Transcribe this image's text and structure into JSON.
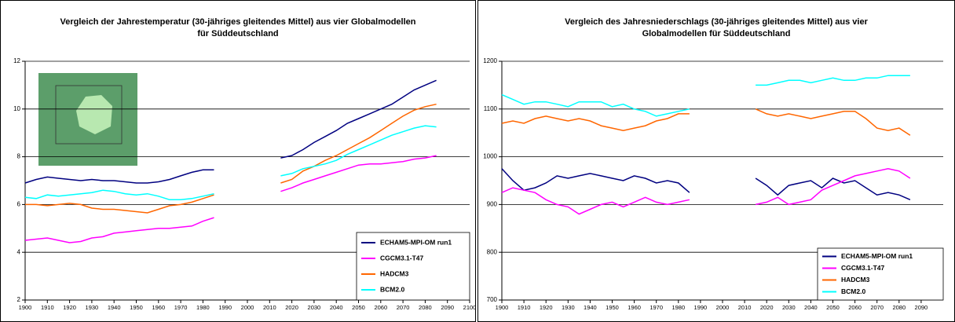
{
  "chart_data": [
    {
      "type": "line",
      "title": "Vergleich der Jahrestemperatur (30-jähriges gleitendes Mittel) aus vier Globalmodellen für Süddeutschland",
      "x": [
        1900,
        1905,
        1910,
        1915,
        1920,
        1925,
        1930,
        1935,
        1940,
        1945,
        1950,
        1955,
        1960,
        1965,
        1970,
        1975,
        1980,
        1985,
        2000,
        2015,
        2020,
        2025,
        2030,
        2035,
        2040,
        2045,
        2050,
        2055,
        2060,
        2065,
        2070,
        2075,
        2080,
        2085
      ],
      "xlim": [
        1900,
        2100
      ],
      "xticks": [
        1900,
        1910,
        1920,
        1930,
        1940,
        1950,
        1960,
        1970,
        1980,
        1990,
        2000,
        2010,
        2020,
        2030,
        2040,
        2050,
        2060,
        2070,
        2080,
        2090,
        2100
      ],
      "ylim": [
        2,
        12
      ],
      "yticks": [
        2,
        4,
        6,
        8,
        10,
        12
      ],
      "grid": true,
      "legend": "lower right",
      "series": [
        {
          "name": "ECHAM5-MPI-OM run1",
          "color": "#000080",
          "values": [
            6.9,
            7.05,
            7.15,
            7.1,
            7.05,
            7.0,
            7.05,
            7.0,
            7.0,
            6.95,
            6.9,
            6.9,
            6.95,
            7.05,
            7.2,
            7.35,
            7.45,
            7.45,
            null,
            7.95,
            8.05,
            8.3,
            8.6,
            8.85,
            9.1,
            9.4,
            9.6,
            9.8,
            10.0,
            10.2,
            10.5,
            10.8,
            11.0,
            11.2
          ]
        },
        {
          "name": "CGCM3.1-T47",
          "color": "#ff00ff",
          "values": [
            4.5,
            4.55,
            4.6,
            4.5,
            4.4,
            4.45,
            4.6,
            4.65,
            4.8,
            4.85,
            4.9,
            4.95,
            5.0,
            5.0,
            5.05,
            5.1,
            5.3,
            5.45,
            null,
            6.55,
            6.7,
            6.9,
            7.05,
            7.2,
            7.35,
            7.5,
            7.65,
            7.7,
            7.7,
            7.75,
            7.8,
            7.9,
            7.95,
            8.05
          ]
        },
        {
          "name": "HADCM3",
          "color": "#ff6600",
          "values": [
            6.0,
            6.0,
            5.95,
            6.0,
            6.05,
            6.0,
            5.85,
            5.8,
            5.8,
            5.75,
            5.7,
            5.65,
            5.8,
            5.95,
            6.0,
            6.1,
            6.25,
            6.4,
            null,
            6.9,
            7.05,
            7.4,
            7.6,
            7.85,
            8.05,
            8.3,
            8.55,
            8.8,
            9.1,
            9.4,
            9.7,
            9.95,
            10.1,
            10.2
          ]
        },
        {
          "name": "BCM2.0",
          "color": "#00ffff",
          "values": [
            6.3,
            6.25,
            6.4,
            6.35,
            6.4,
            6.45,
            6.5,
            6.6,
            6.55,
            6.45,
            6.4,
            6.45,
            6.35,
            6.2,
            6.2,
            6.25,
            6.35,
            6.45,
            null,
            7.2,
            7.3,
            7.5,
            7.6,
            7.7,
            7.85,
            8.1,
            8.3,
            8.5,
            8.7,
            8.9,
            9.05,
            9.2,
            9.3,
            9.25
          ]
        }
      ]
    },
    {
      "type": "line",
      "title": "Vergleich des Jahresniederschlags (30-jähriges gleitendes Mittel) aus vier Globalmodellen für Süddeutschland",
      "x": [
        1900,
        1905,
        1910,
        1915,
        1920,
        1925,
        1930,
        1935,
        1940,
        1945,
        1950,
        1955,
        1960,
        1965,
        1970,
        1975,
        1980,
        1985,
        2000,
        2015,
        2020,
        2025,
        2030,
        2035,
        2040,
        2045,
        2050,
        2055,
        2060,
        2065,
        2070,
        2075,
        2080,
        2085
      ],
      "xlim": [
        1900,
        2100
      ],
      "xticks": [
        1900,
        1910,
        1920,
        1930,
        1940,
        1950,
        1960,
        1970,
        1980,
        1990,
        2000,
        2010,
        2020,
        2030,
        2040,
        2050,
        2060,
        2070,
        2080,
        2090
      ],
      "ylim": [
        700,
        1200
      ],
      "yticks": [
        700,
        800,
        900,
        1000,
        1100,
        1200
      ],
      "grid": true,
      "legend": "lower right",
      "series": [
        {
          "name": "ECHAM5-MPI-OM run1",
          "color": "#000080",
          "values": [
            975,
            950,
            930,
            935,
            945,
            960,
            955,
            960,
            965,
            960,
            955,
            950,
            960,
            955,
            945,
            950,
            945,
            925,
            null,
            955,
            940,
            920,
            940,
            945,
            950,
            935,
            955,
            945,
            950,
            935,
            920,
            925,
            920,
            910
          ]
        },
        {
          "name": "CGCM3.1-T47",
          "color": "#ff00ff",
          "values": [
            925,
            935,
            930,
            925,
            910,
            900,
            895,
            880,
            890,
            900,
            905,
            895,
            905,
            915,
            905,
            900,
            905,
            910,
            null,
            900,
            905,
            915,
            900,
            905,
            910,
            930,
            940,
            950,
            960,
            965,
            970,
            975,
            970,
            955
          ]
        },
        {
          "name": "HADCM3",
          "color": "#ff6600",
          "values": [
            1070,
            1075,
            1070,
            1080,
            1085,
            1080,
            1075,
            1080,
            1075,
            1065,
            1060,
            1055,
            1060,
            1065,
            1075,
            1080,
            1090,
            1090,
            null,
            1100,
            1090,
            1085,
            1090,
            1085,
            1080,
            1085,
            1090,
            1095,
            1095,
            1080,
            1060,
            1055,
            1060,
            1045
          ]
        },
        {
          "name": "BCM2.0",
          "color": "#00ffff",
          "values": [
            1130,
            1120,
            1110,
            1115,
            1115,
            1110,
            1105,
            1115,
            1115,
            1115,
            1105,
            1110,
            1100,
            1095,
            1085,
            1090,
            1095,
            1100,
            null,
            1150,
            1150,
            1155,
            1160,
            1160,
            1155,
            1160,
            1165,
            1160,
            1160,
            1165,
            1165,
            1170,
            1170,
            1170
          ]
        }
      ]
    }
  ]
}
